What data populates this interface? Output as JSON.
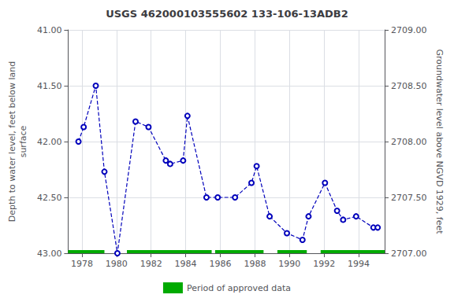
{
  "chart_data": {
    "type": "line",
    "title": "USGS 462000103555602 133-106-13ADB2",
    "ylabel": "Depth to water level, feet below land\nsurface",
    "y2label": "Groundwater level above NGVD 1929, feet",
    "x": [
      1977.8,
      1978.1,
      1978.8,
      1979.3,
      1980.05,
      1981.1,
      1981.85,
      1982.85,
      1983.1,
      1983.85,
      1984.1,
      1985.2,
      1985.85,
      1986.85,
      1987.8,
      1988.1,
      1988.85,
      1989.85,
      1990.75,
      1991.1,
      1992.05,
      1992.75,
      1993.1,
      1993.85,
      1994.85,
      1995.1
    ],
    "series": [
      {
        "type": "line",
        "color": "#0000BB",
        "line_style": "dashed",
        "marker": "circle",
        "values": [
          42.0,
          41.87,
          41.5,
          42.27,
          43.0,
          41.82,
          41.87,
          42.17,
          42.2,
          42.17,
          41.77,
          42.5,
          42.5,
          42.5,
          42.37,
          42.22,
          42.67,
          42.82,
          42.88,
          42.67,
          42.37,
          42.62,
          42.7,
          42.67,
          42.77,
          42.77
        ]
      },
      {
        "type": "range",
        "name": "Period of approved data",
        "color": "#00AA00",
        "ranges": [
          [
            1977.2,
            1979.3
          ],
          [
            1980.6,
            1985.5
          ],
          [
            1985.7,
            1988.5
          ],
          [
            1989.3,
            1991.0
          ],
          [
            1991.8,
            1995.5
          ]
        ]
      }
    ],
    "xlim": [
      1977.2,
      1995.5
    ],
    "xticks": [
      1978,
      1980,
      1982,
      1984,
      1986,
      1988,
      1990,
      1992,
      1994
    ],
    "ylim": [
      43.0,
      41.0
    ],
    "yticks": [
      {
        "value": 41.0,
        "label": "41.00"
      },
      {
        "value": 41.5,
        "label": "41.50"
      },
      {
        "value": 42.0,
        "label": "42.00"
      },
      {
        "value": 42.5,
        "label": "42.50"
      },
      {
        "value": 43.0,
        "label": "43.00"
      }
    ],
    "y2lim": [
      2707.0,
      2709.0
    ],
    "y2ticks": [
      {
        "value": 2707.0,
        "label": "2707.00"
      },
      {
        "value": 2707.5,
        "label": "2707.50"
      },
      {
        "value": 2708.0,
        "label": "2708.00"
      },
      {
        "value": 2708.5,
        "label": "2708.50"
      },
      {
        "value": 2709.0,
        "label": "2709.00"
      }
    ],
    "grid": true,
    "legend": "bottom"
  }
}
